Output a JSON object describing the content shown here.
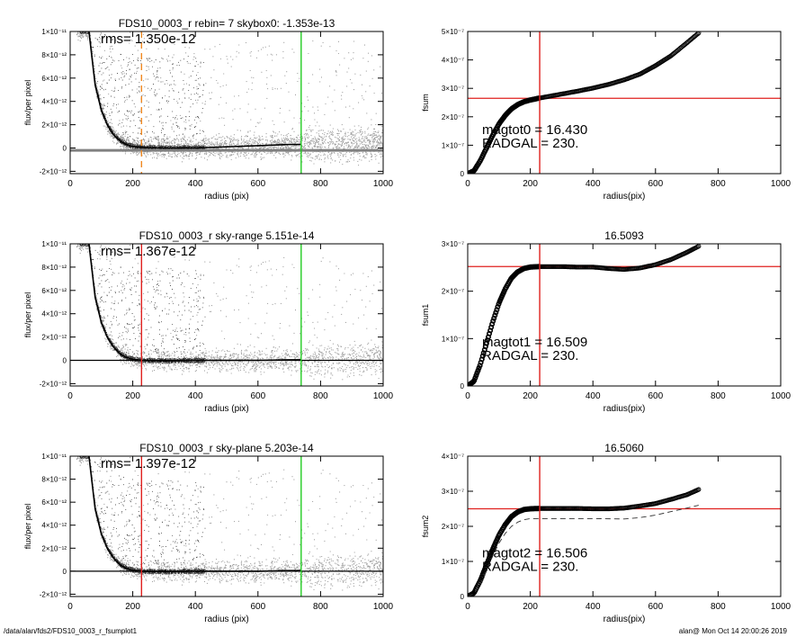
{
  "footer": {
    "path": "/data/alan/fds2/FDS10_0003_r_fsumplot1",
    "stamp": "alan@  Mon Oct 14 20:00:26 2019"
  },
  "colors": {
    "scatter_gray": "#a0a0a0",
    "profile_black": "#000000",
    "red_marker": "#e0201e",
    "green_marker": "#22cc22",
    "orange_marker": "#f08820"
  },
  "chart_data": [
    {
      "id": "flux1",
      "type": "scatter",
      "title": "FDS10_0003_r rebin= 7    skybox0: -1.353e-13",
      "annotation": "rms= 1.350e-12",
      "xlabel": "radius (pix)",
      "ylabel": "flux/per pixel",
      "xlim": [
        0,
        1000
      ],
      "ylim": [
        -2.2e-12,
        1e-11
      ],
      "xticks": [
        0,
        200,
        400,
        600,
        800,
        1000
      ],
      "xticklabels": [
        "0",
        "200",
        "400",
        "600",
        "800",
        "1000"
      ],
      "yticks": [
        -2e-12,
        0,
        2e-12,
        4e-12,
        6e-12,
        8e-12,
        1e-11
      ],
      "yticklabels": [
        "-2×10⁻¹²",
        "0",
        "2×10⁻¹²",
        "4×10⁻¹²",
        "6×10⁻¹²",
        "8×10⁻¹²",
        "1×10⁻¹¹"
      ],
      "vlines": [
        {
          "x": 228,
          "color": "orange",
          "style": "dashed"
        },
        {
          "x": 738,
          "color": "green",
          "style": "solid"
        }
      ],
      "hlines": [
        {
          "y": -2e-13,
          "color": "gray",
          "style": "band"
        }
      ],
      "profile": {
        "x": [
          60,
          80,
          100,
          120,
          140,
          160,
          180,
          200,
          228,
          300,
          400,
          500,
          600,
          700,
          738
        ],
        "y": [
          1e-11,
          5.4e-12,
          3.2e-12,
          1.9e-12,
          1.1e-12,
          6e-13,
          3e-13,
          1.5e-13,
          5e-14,
          0,
          0,
          1e-13,
          2e-13,
          3e-13,
          3e-13
        ]
      }
    },
    {
      "id": "fsum",
      "type": "line",
      "title": "",
      "annotation": [
        "magtot0 =  16.430",
        "RADGAL =    230."
      ],
      "xlabel": "radius(pix)",
      "ylabel": "fsum",
      "xlim": [
        0,
        1000
      ],
      "ylim": [
        0,
        5e-07
      ],
      "xticks": [
        0,
        200,
        400,
        600,
        800,
        1000
      ],
      "xticklabels": [
        "0",
        "200",
        "400",
        "600",
        "800",
        "1000"
      ],
      "yticks": [
        0,
        1e-07,
        2e-07,
        3e-07,
        4e-07,
        5e-07
      ],
      "yticklabels": [
        "0",
        "1×10⁻⁷",
        "2×10⁻⁷",
        "3×10⁻⁷",
        "4×10⁻⁷",
        "5×10⁻⁷"
      ],
      "vlines": [
        {
          "x": 230,
          "color": "red",
          "style": "solid"
        }
      ],
      "hlines": [
        {
          "y": 2.65e-07,
          "color": "red",
          "style": "solid"
        }
      ],
      "series": [
        {
          "x": [
            0,
            20,
            40,
            60,
            80,
            100,
            120,
            140,
            160,
            180,
            200,
            230,
            260,
            300,
            350,
            400,
            450,
            500,
            550,
            600,
            650,
            700,
            738
          ],
          "y": [
            0,
            1e-08,
            4.5e-08,
            9e-08,
            1.35e-07,
            1.75e-07,
            2.05e-07,
            2.28e-07,
            2.43e-07,
            2.53e-07,
            2.59e-07,
            2.66e-07,
            2.72e-07,
            2.8e-07,
            2.9e-07,
            3.01e-07,
            3.14e-07,
            3.3e-07,
            3.5e-07,
            3.8e-07,
            4.15e-07,
            4.6e-07,
            4.95e-07
          ],
          "marker": "circle"
        }
      ]
    },
    {
      "id": "flux2",
      "type": "scatter",
      "title": "FDS10_0003_r sky-range  5.151e-14",
      "annotation": "rms= 1.367e-12",
      "xlabel": "radius (pix)",
      "ylabel": "flux/per pixel",
      "xlim": [
        0,
        1000
      ],
      "ylim": [
        -2.2e-12,
        1e-11
      ],
      "xticks": [
        0,
        200,
        400,
        600,
        800,
        1000
      ],
      "xticklabels": [
        "0",
        "200",
        "400",
        "600",
        "800",
        "1000"
      ],
      "yticks": [
        -2e-12,
        0,
        2e-12,
        4e-12,
        6e-12,
        8e-12,
        1e-11
      ],
      "yticklabels": [
        "-2×10⁻¹²",
        "0",
        "2×10⁻¹²",
        "4×10⁻¹²",
        "6×10⁻¹²",
        "8×10⁻¹²",
        "1×10⁻¹¹"
      ],
      "vlines": [
        {
          "x": 228,
          "color": "red",
          "style": "solid"
        },
        {
          "x": 738,
          "color": "green",
          "style": "solid"
        }
      ],
      "hlines": [
        {
          "y": 0,
          "color": "black",
          "style": "solid"
        }
      ],
      "profile": {
        "x": [
          60,
          80,
          100,
          120,
          140,
          160,
          180,
          200,
          228,
          300,
          400,
          500,
          600,
          700,
          738
        ],
        "y": [
          1e-11,
          5.4e-12,
          3.2e-12,
          1.9e-12,
          1.1e-12,
          5.5e-13,
          2.5e-13,
          1e-13,
          0,
          -5e-14,
          0,
          0,
          0,
          5e-14,
          5e-14
        ]
      }
    },
    {
      "id": "fsum1",
      "type": "line",
      "title": "16.5093",
      "annotation": [
        "magtot1 =  16.509",
        "RADGAL =    230."
      ],
      "xlabel": "radius(pix)",
      "ylabel": "fsum1",
      "xlim": [
        0,
        1000
      ],
      "ylim": [
        0,
        3e-07
      ],
      "xticks": [
        0,
        200,
        400,
        600,
        800,
        1000
      ],
      "xticklabels": [
        "0",
        "200",
        "400",
        "600",
        "800",
        "1000"
      ],
      "yticks": [
        0,
        1e-07,
        2e-07,
        3e-07
      ],
      "yticklabels": [
        "0",
        "1×10⁻⁷",
        "2×10⁻⁷",
        "3×10⁻⁷"
      ],
      "vlines": [
        {
          "x": 230,
          "color": "red",
          "style": "solid"
        }
      ],
      "hlines": [
        {
          "y": 2.52e-07,
          "color": "red",
          "style": "solid"
        }
      ],
      "series": [
        {
          "x": [
            0,
            20,
            40,
            60,
            80,
            100,
            120,
            140,
            160,
            180,
            200,
            230,
            260,
            300,
            350,
            400,
            450,
            500,
            550,
            600,
            650,
            700,
            738
          ],
          "y": [
            0,
            1e-08,
            4.5e-08,
            9e-08,
            1.35e-07,
            1.75e-07,
            2.05e-07,
            2.28e-07,
            2.41e-07,
            2.48e-07,
            2.51e-07,
            2.52e-07,
            2.52e-07,
            2.52e-07,
            2.51e-07,
            2.51e-07,
            2.48e-07,
            2.46e-07,
            2.49e-07,
            2.56e-07,
            2.67e-07,
            2.82e-07,
            2.95e-07
          ],
          "marker": "circle"
        }
      ]
    },
    {
      "id": "flux3",
      "type": "scatter",
      "title": "FDS10_0003_r sky-plane  5.203e-14",
      "annotation": "rms= 1.397e-12",
      "xlabel": "radius (pix)",
      "ylabel": "flux/per pixel",
      "xlim": [
        0,
        1000
      ],
      "ylim": [
        -2.2e-12,
        1e-11
      ],
      "xticks": [
        0,
        200,
        400,
        600,
        800,
        1000
      ],
      "xticklabels": [
        "0",
        "200",
        "400",
        "600",
        "800",
        "1000"
      ],
      "yticks": [
        -2e-12,
        0,
        2e-12,
        4e-12,
        6e-12,
        8e-12,
        1e-11
      ],
      "yticklabels": [
        "-2×10⁻¹²",
        "0",
        "2×10⁻¹²",
        "4×10⁻¹²",
        "6×10⁻¹²",
        "8×10⁻¹²",
        "1×10⁻¹¹"
      ],
      "vlines": [
        {
          "x": 228,
          "color": "red",
          "style": "solid"
        },
        {
          "x": 738,
          "color": "green",
          "style": "solid"
        }
      ],
      "hlines": [
        {
          "y": 0,
          "color": "black",
          "style": "solid"
        }
      ],
      "profile": {
        "x": [
          60,
          80,
          100,
          120,
          140,
          160,
          180,
          200,
          228,
          300,
          400,
          500,
          600,
          700,
          738
        ],
        "y": [
          1e-11,
          5.4e-12,
          3.2e-12,
          1.9e-12,
          1.1e-12,
          5.5e-13,
          2.5e-13,
          1e-13,
          0,
          -5e-14,
          0,
          0,
          0,
          5e-14,
          5e-14
        ]
      }
    },
    {
      "id": "fsum2",
      "type": "line",
      "title": "16.5060",
      "annotation": [
        "magtot2 =  16.506",
        "RADGAL =    230."
      ],
      "xlabel": "radius(pix)",
      "ylabel": "fsum2",
      "xlim": [
        0,
        1000
      ],
      "ylim": [
        0,
        4e-07
      ],
      "xticks": [
        0,
        200,
        400,
        600,
        800,
        1000
      ],
      "xticklabels": [
        "0",
        "200",
        "400",
        "600",
        "800",
        "1000"
      ],
      "yticks": [
        0,
        1e-07,
        2e-07,
        3e-07,
        4e-07
      ],
      "yticklabels": [
        "0",
        "1×10⁻⁷",
        "2×10⁻⁷",
        "3×10⁻⁷",
        "4×10⁻⁷"
      ],
      "vlines": [
        {
          "x": 230,
          "color": "red",
          "style": "solid"
        }
      ],
      "hlines": [
        {
          "y": 2.5e-07,
          "color": "red",
          "style": "solid"
        }
      ],
      "series": [
        {
          "x": [
            0,
            20,
            40,
            60,
            80,
            100,
            120,
            140,
            160,
            180,
            200,
            230,
            260,
            300,
            350,
            400,
            450,
            500,
            550,
            600,
            650,
            700,
            738
          ],
          "y": [
            0,
            1e-08,
            4.5e-08,
            9e-08,
            1.35e-07,
            1.75e-07,
            2.05e-07,
            2.28e-07,
            2.41e-07,
            2.48e-07,
            2.5e-07,
            2.51e-07,
            2.51e-07,
            2.51e-07,
            2.51e-07,
            2.5e-07,
            2.5e-07,
            2.52e-07,
            2.58e-07,
            2.65e-07,
            2.77e-07,
            2.9e-07,
            3.05e-07
          ],
          "marker": "circle"
        },
        {
          "x": [
            0,
            20,
            40,
            60,
            80,
            100,
            120,
            140,
            160,
            180,
            200,
            230,
            300,
            400,
            500,
            550,
            600,
            650,
            700,
            738
          ],
          "y": [
            0,
            8e-09,
            3.5e-08,
            7.5e-08,
            1.15e-07,
            1.52e-07,
            1.8e-07,
            2e-07,
            2.12e-07,
            2.19e-07,
            2.22e-07,
            2.22e-07,
            2.22e-07,
            2.22e-07,
            2.21e-07,
            2.25e-07,
            2.32e-07,
            2.42e-07,
            2.52e-07,
            2.6e-07
          ],
          "style": "dashed"
        }
      ]
    }
  ]
}
